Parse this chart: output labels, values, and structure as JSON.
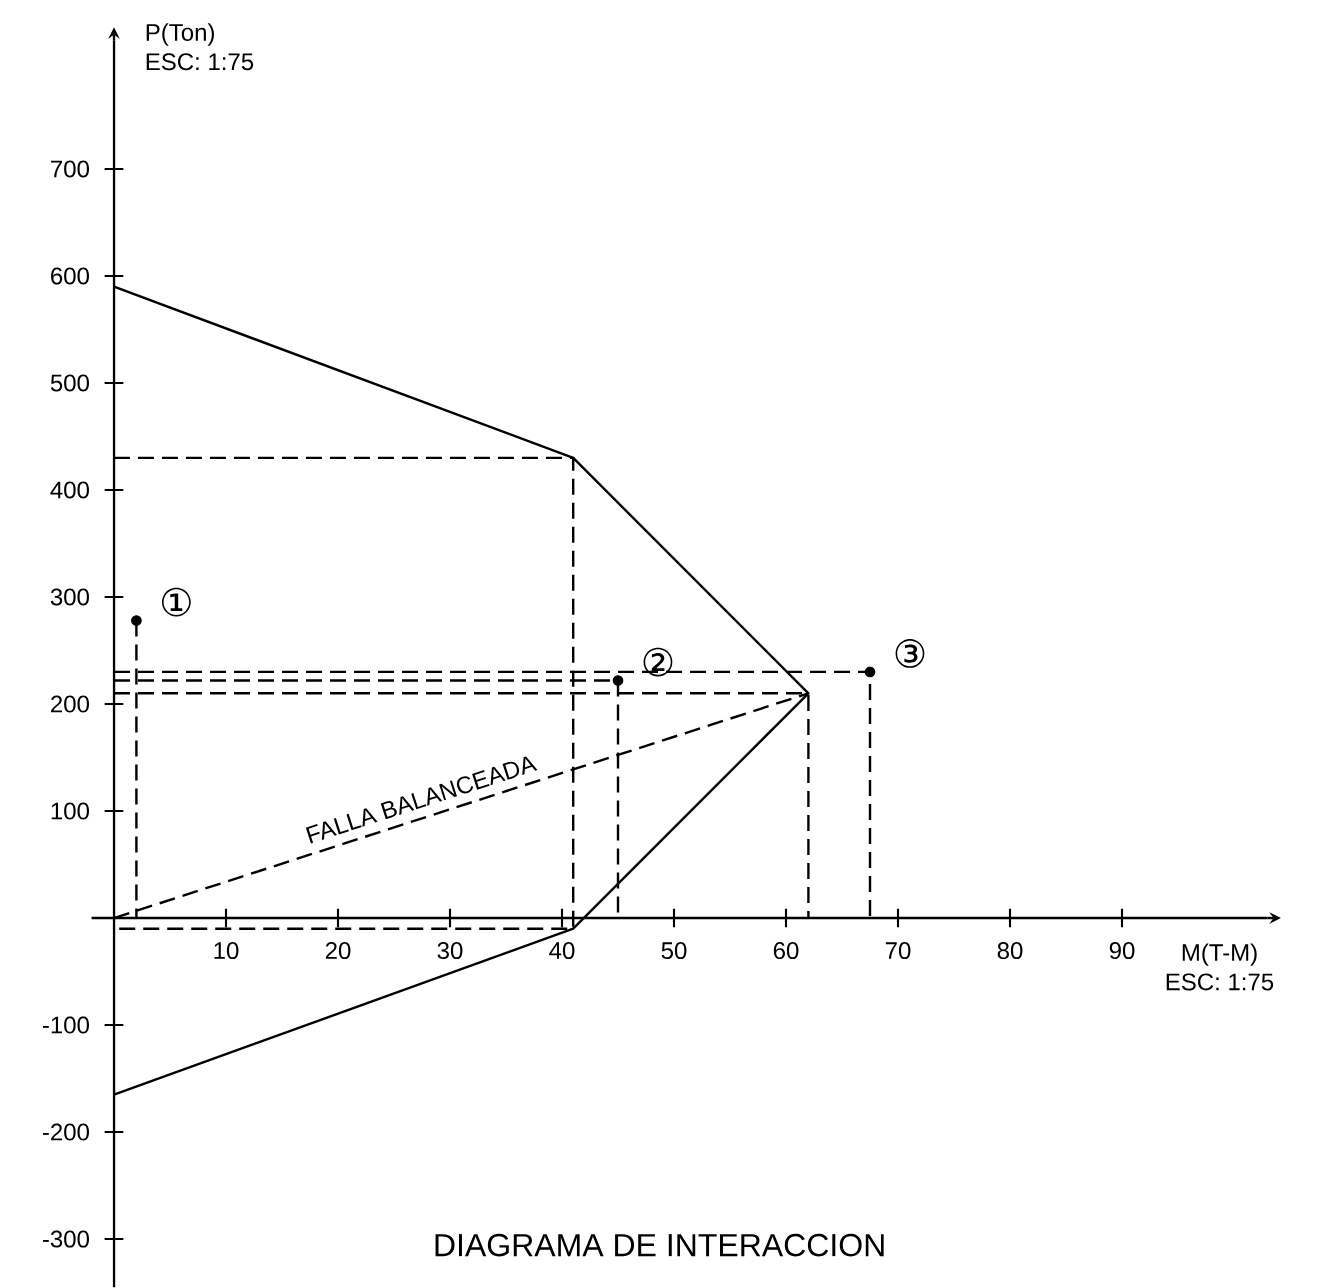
{
  "chart_data": {
    "type": "line",
    "title": "DIAGRAMA DE INTERACCION",
    "xlabel": "M(T-M)",
    "ylabel": "P(Ton)",
    "annotations": [
      "ESC: 1:75",
      "ESC: 1:75"
    ],
    "xlim": [
      -2,
      103
    ],
    "ylim": [
      -345,
      820
    ],
    "xticks": [
      10,
      20,
      30,
      40,
      50,
      60,
      70,
      80,
      90
    ],
    "yticks": [
      -300,
      -200,
      -100,
      100,
      200,
      300,
      400,
      500,
      600,
      700
    ],
    "grid": false,
    "series": [
      {
        "color": "#000000",
        "line_style": "solid",
        "x": [
          0,
          41,
          62,
          41,
          0
        ],
        "values": [
          590,
          430,
          210,
          -10,
          -165
        ]
      },
      {
        "name": "FALLA BALANCEADA",
        "color": "#000000",
        "line_style": "dashed",
        "x": [
          0,
          62
        ],
        "values": [
          0,
          210
        ]
      },
      {
        "type": "line",
        "color": "#000000",
        "line_style": "dashed",
        "x": [
          0,
          41,
          41,
          0
        ],
        "values": [
          430,
          430,
          -10,
          -10
        ]
      },
      {
        "type": "line",
        "color": "#000000",
        "line_style": "dashed",
        "x": [
          0,
          62,
          62
        ],
        "values": [
          210,
          210,
          0
        ]
      },
      {
        "type": "line",
        "color": "#000000",
        "line_style": "dashed",
        "x": [
          2,
          2
        ],
        "values": [
          278,
          0
        ]
      },
      {
        "type": "line",
        "color": "#000000",
        "line_style": "dashed",
        "x": [
          0,
          45,
          45
        ],
        "values": [
          222,
          222,
          0
        ]
      },
      {
        "type": "line",
        "color": "#000000",
        "line_style": "dashed",
        "x": [
          0,
          67.5,
          67.5
        ],
        "values": [
          230,
          230,
          0
        ]
      },
      {
        "type": "scatter",
        "name": "①",
        "color": "#000000",
        "marker": "circle",
        "x": [
          2
        ],
        "values": [
          278
        ]
      },
      {
        "type": "scatter",
        "name": "②",
        "color": "#000000",
        "marker": "circle",
        "x": [
          45
        ],
        "values": [
          222
        ]
      },
      {
        "type": "scatter",
        "name": "③",
        "color": "#000000",
        "marker": "circle",
        "x": [
          67.5
        ],
        "values": [
          230
        ]
      }
    ]
  }
}
